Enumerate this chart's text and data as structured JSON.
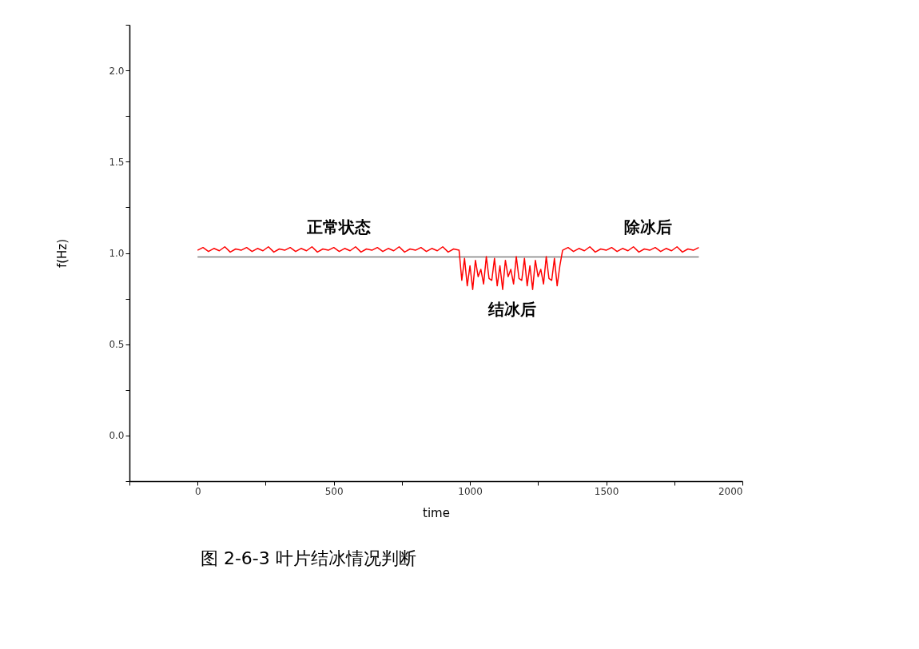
{
  "chart_data": {
    "type": "line",
    "xlabel": "time",
    "ylabel": "f(Hz)",
    "xlim": [
      -250,
      2000
    ],
    "xticks": [
      {
        "value": -250,
        "label": null
      },
      0,
      {
        "value": 250,
        "label": null
      },
      500,
      {
        "value": 750,
        "label": null
      },
      1000,
      {
        "value": 1250,
        "label": null
      },
      1500,
      {
        "value": 1750,
        "label": null
      },
      2000
    ],
    "ylim": [
      -0.25,
      2.25
    ],
    "yticks": [
      {
        "value": -0.25,
        "label": null
      },
      {
        "value": 0,
        "label": "0.0"
      },
      {
        "value": 0.25,
        "label": null
      },
      {
        "value": 0.5,
        "label": "0.5"
      },
      {
        "value": 0.75,
        "label": null
      },
      {
        "value": 1,
        "label": "1.0"
      },
      {
        "value": 1.25,
        "label": null
      },
      {
        "value": 1.5,
        "label": "1.5"
      },
      {
        "value": 1.75,
        "label": null
      },
      {
        "value": 2,
        "label": "2.0"
      },
      {
        "value": 2.25,
        "label": null
      }
    ],
    "marker": "none",
    "line_style": "solid",
    "series": [
      {
        "color": "#808080",
        "x": [
          0,
          1840
        ],
        "values": [
          0.978,
          0.978
        ]
      },
      {
        "color": "#ff0000",
        "x": [
          0,
          20,
          40,
          60,
          80,
          100,
          120,
          140,
          160,
          180,
          200,
          220,
          240,
          260,
          280,
          300,
          320,
          340,
          360,
          380,
          400,
          420,
          440,
          460,
          480,
          500,
          520,
          540,
          560,
          580,
          600,
          620,
          640,
          660,
          680,
          700,
          720,
          740,
          760,
          780,
          800,
          820,
          840,
          860,
          880,
          900,
          920,
          940,
          960,
          970,
          980,
          990,
          1000,
          1010,
          1020,
          1030,
          1040,
          1050,
          1060,
          1070,
          1080,
          1090,
          1100,
          1110,
          1120,
          1130,
          1140,
          1150,
          1160,
          1170,
          1180,
          1190,
          1200,
          1210,
          1220,
          1230,
          1240,
          1250,
          1260,
          1270,
          1280,
          1290,
          1300,
          1310,
          1320,
          1330,
          1340,
          1360,
          1380,
          1400,
          1420,
          1440,
          1460,
          1480,
          1500,
          1520,
          1540,
          1560,
          1580,
          1600,
          1620,
          1640,
          1660,
          1680,
          1700,
          1720,
          1740,
          1760,
          1780,
          1800,
          1820,
          1840
        ],
        "values": [
          1.015,
          1.03,
          1.008,
          1.025,
          1.012,
          1.034,
          1.005,
          1.022,
          1.015,
          1.03,
          1.008,
          1.025,
          1.012,
          1.034,
          1.005,
          1.022,
          1.015,
          1.03,
          1.008,
          1.025,
          1.012,
          1.034,
          1.005,
          1.022,
          1.015,
          1.03,
          1.008,
          1.025,
          1.012,
          1.034,
          1.005,
          1.022,
          1.015,
          1.03,
          1.008,
          1.025,
          1.012,
          1.034,
          1.005,
          1.022,
          1.015,
          1.03,
          1.008,
          1.025,
          1.012,
          1.034,
          1.005,
          1.022,
          1.015,
          0.85,
          0.97,
          0.82,
          0.93,
          0.8,
          0.96,
          0.87,
          0.91,
          0.83,
          0.98,
          0.86,
          0.85,
          0.97,
          0.82,
          0.93,
          0.8,
          0.96,
          0.87,
          0.91,
          0.83,
          0.98,
          0.86,
          0.85,
          0.97,
          0.82,
          0.93,
          0.8,
          0.96,
          0.87,
          0.91,
          0.83,
          0.98,
          0.86,
          0.85,
          0.97,
          0.82,
          0.93,
          1.015,
          1.03,
          1.008,
          1.025,
          1.012,
          1.034,
          1.005,
          1.022,
          1.015,
          1.03,
          1.008,
          1.025,
          1.012,
          1.034,
          1.005,
          1.022,
          1.015,
          1.03,
          1.008,
          1.025,
          1.012,
          1.034,
          1.005,
          1.022,
          1.015,
          1.03
        ]
      }
    ],
    "annotations": [
      "正常状态",
      "结冰后",
      "除冰后",
      "图 2-6-3  叶片结冰情况判断"
    ]
  }
}
